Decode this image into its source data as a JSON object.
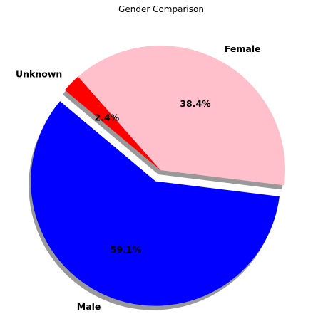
{
  "chart_data": {
    "type": "pie",
    "title": "Gender Comparison",
    "slices": [
      {
        "label": "Male",
        "value": 59.1,
        "pct_label": "59.1%",
        "color": "#0000ff",
        "exploded": true
      },
      {
        "label": "Female",
        "value": 38.4,
        "pct_label": "38.4%",
        "color": "#ffc0cb",
        "exploded": false
      },
      {
        "label": "Unknown",
        "value": 2.4,
        "pct_label": "2.4%",
        "color": "#ff0000",
        "exploded": false
      }
    ],
    "start_angle_deg": 140,
    "shadow": true,
    "legend": false
  }
}
